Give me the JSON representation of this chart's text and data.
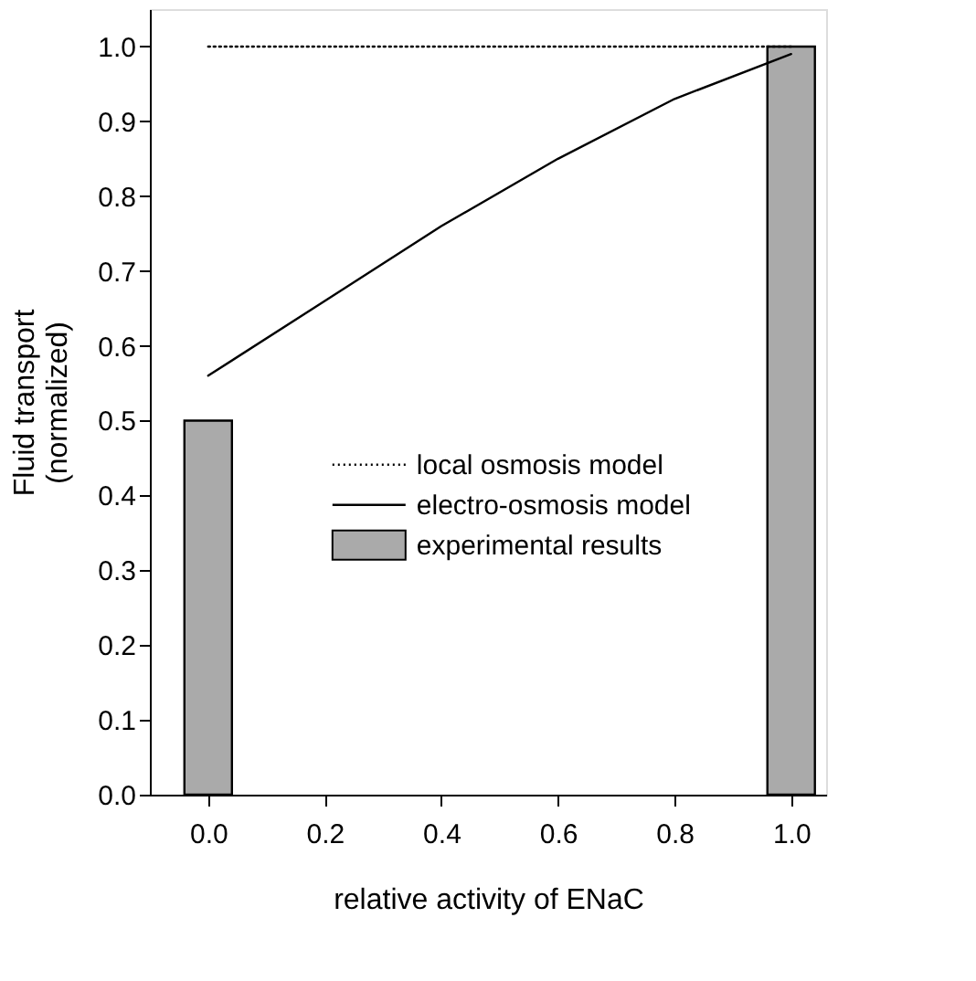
{
  "chart_data": {
    "type": "line",
    "xlabel": "relative activity of ENaC",
    "ylabel": "Fluid transport\n(normalized)",
    "xlim": [
      -0.1,
      1.06
    ],
    "ylim": [
      0,
      1.05
    ],
    "xticks": [
      {
        "value": 0,
        "label": "0.0"
      },
      0.2,
      0.4,
      0.6,
      0.8,
      {
        "value": 1,
        "label": "1.0"
      }
    ],
    "yticks": [
      {
        "value": 0,
        "label": "0.0"
      },
      0.1,
      0.2,
      0.3,
      0.4,
      0.5,
      0.6,
      0.7,
      0.8,
      0.9,
      {
        "value": 1,
        "label": "1.0"
      }
    ],
    "grid": false,
    "legend": "left",
    "series": [
      {
        "name": "local osmosis model",
        "line_style": "dotted",
        "color": "#000000",
        "x": [
          0,
          1
        ],
        "values": [
          1.0,
          1.0
        ]
      },
      {
        "name": "electro-osmosis model",
        "line_style": "solid",
        "color": "#000000",
        "x": [
          0,
          0.2,
          0.4,
          0.6,
          0.8,
          1.0
        ],
        "values": [
          0.56,
          0.66,
          0.76,
          0.85,
          0.93,
          0.99
        ]
      },
      {
        "name": "experimental results",
        "type": "bar",
        "color": "#aaaaaa",
        "x": [
          0,
          1
        ],
        "values": [
          0.5,
          1.0
        ]
      }
    ]
  }
}
